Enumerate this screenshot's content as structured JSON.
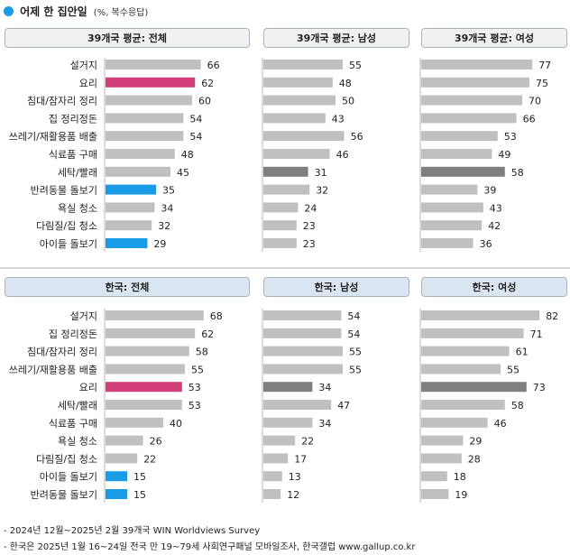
{
  "header": {
    "title": "어제 한 집안일",
    "subtitle": "(%, 복수응답)"
  },
  "colors": {
    "default": "#c0c0c0",
    "cooking": "#d23f78",
    "pet": "#1a9be6",
    "laundry": "#7f7f7f",
    "world_header": "#f1f1f1",
    "korea_header": "#dce6f2"
  },
  "chart_data": [
    {
      "type": "bar",
      "orientation": "horizontal",
      "xlim": [
        0,
        100
      ],
      "grid": false,
      "title": "39개국 평균: 전체",
      "categories": [
        "설거지",
        "요리",
        "침대/잠자리 정리",
        "집 정리정돈",
        "쓰레기/재활용품 배출",
        "식료품 구매",
        "세탁/빨래",
        "반려동물 돌보기",
        "욕실 청소",
        "다림질/집 청소",
        "아이들 돌보기"
      ],
      "values": [
        66,
        62,
        60,
        54,
        54,
        48,
        45,
        35,
        34,
        32,
        29
      ],
      "highlight": [
        "default",
        "cooking",
        "default",
        "default",
        "default",
        "default",
        "default",
        "pet",
        "default",
        "default",
        "pet"
      ]
    },
    {
      "type": "bar",
      "orientation": "horizontal",
      "xlim": [
        0,
        100
      ],
      "grid": false,
      "title": "39개국 평균: 남성",
      "categories": [
        "설거지",
        "요리",
        "침대/잠자리 정리",
        "집 정리정돈",
        "쓰레기/재활용품 배출",
        "식료품 구매",
        "세탁/빨래",
        "반려동물 돌보기",
        "욕실 청소",
        "다림질/집 청소",
        "아이들 돌보기"
      ],
      "values": [
        55,
        48,
        50,
        43,
        56,
        46,
        31,
        32,
        24,
        23,
        23
      ],
      "highlight": [
        "default",
        "default",
        "default",
        "default",
        "default",
        "default",
        "laundry",
        "default",
        "default",
        "default",
        "default"
      ]
    },
    {
      "type": "bar",
      "orientation": "horizontal",
      "xlim": [
        0,
        100
      ],
      "grid": false,
      "title": "39개국 평균: 여성",
      "categories": [
        "설거지",
        "요리",
        "침대/잠자리 정리",
        "집 정리정돈",
        "쓰레기/재활용품 배출",
        "식료품 구매",
        "세탁/빨래",
        "반려동물 돌보기",
        "욕실 청소",
        "다림질/집 청소",
        "아이들 돌보기"
      ],
      "values": [
        77,
        75,
        70,
        66,
        53,
        49,
        58,
        39,
        43,
        42,
        36
      ],
      "highlight": [
        "default",
        "default",
        "default",
        "default",
        "default",
        "default",
        "laundry",
        "default",
        "default",
        "default",
        "default"
      ]
    },
    {
      "type": "bar",
      "orientation": "horizontal",
      "xlim": [
        0,
        100
      ],
      "grid": false,
      "title": "한국: 전체",
      "categories": [
        "설거지",
        "집 정리정돈",
        "침대/잠자리 정리",
        "쓰레기/재활용품 배출",
        "요리",
        "세탁/빨래",
        "식료품 구매",
        "욕실 청소",
        "다림질/집 청소",
        "아이들 돌보기",
        "반려동물 돌보기"
      ],
      "values": [
        68,
        62,
        58,
        55,
        53,
        53,
        40,
        26,
        22,
        15,
        15
      ],
      "highlight": [
        "default",
        "default",
        "default",
        "default",
        "cooking",
        "default",
        "default",
        "default",
        "default",
        "pet",
        "pet"
      ]
    },
    {
      "type": "bar",
      "orientation": "horizontal",
      "xlim": [
        0,
        100
      ],
      "grid": false,
      "title": "한국: 남성",
      "categories": [
        "설거지",
        "집 정리정돈",
        "침대/잠자리 정리",
        "쓰레기/재활용품 배출",
        "요리",
        "세탁/빨래",
        "식료품 구매",
        "욕실 청소",
        "다림질/집 청소",
        "아이들 돌보기",
        "반려동물 돌보기"
      ],
      "values": [
        54,
        54,
        55,
        55,
        34,
        47,
        34,
        22,
        17,
        13,
        12
      ],
      "highlight": [
        "default",
        "default",
        "default",
        "default",
        "laundry",
        "default",
        "default",
        "default",
        "default",
        "default",
        "default"
      ]
    },
    {
      "type": "bar",
      "orientation": "horizontal",
      "xlim": [
        0,
        100
      ],
      "grid": false,
      "title": "한국: 여성",
      "categories": [
        "설거지",
        "집 정리정돈",
        "침대/잠자리 정리",
        "쓰레기/재활용품 배출",
        "요리",
        "세탁/빨래",
        "식료품 구매",
        "욕실 청소",
        "다림질/집 청소",
        "아이들 돌보기",
        "반려동물 돌보기"
      ],
      "values": [
        82,
        71,
        61,
        55,
        73,
        58,
        46,
        29,
        28,
        18,
        19
      ],
      "highlight": [
        "default",
        "default",
        "default",
        "default",
        "laundry",
        "default",
        "default",
        "default",
        "default",
        "default",
        "default"
      ]
    }
  ],
  "notes": [
    "- 2024년 12월~2025년 2월 39개국 WIN Worldviews Survey",
    "- 한국은 2025년 1월 16~24일 전국 만 19~79세 사회연구패널 모바일조사, 한국갤럽 www.gallup.co.kr"
  ]
}
